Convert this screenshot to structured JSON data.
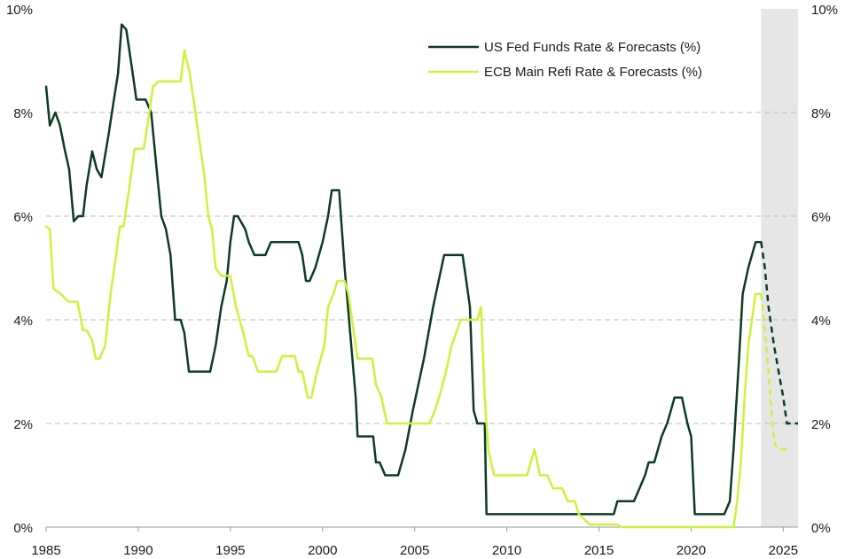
{
  "chart_data": {
    "type": "line",
    "title": "",
    "xlabel": "",
    "ylabel": "",
    "xlim": [
      1985,
      2025.8
    ],
    "ylim": [
      0,
      10
    ],
    "x_ticks": [
      1985,
      1990,
      1995,
      2000,
      2005,
      2010,
      2015,
      2020,
      2025
    ],
    "x_tick_labels": [
      "1985",
      "1990",
      "1995",
      "2000",
      "2005",
      "2010",
      "2015",
      "2020",
      "2025"
    ],
    "y_ticks": [
      0,
      2,
      4,
      6,
      8,
      10
    ],
    "y_tick_labels": [
      "0%",
      "2%",
      "4%",
      "6%",
      "8%",
      "10%"
    ],
    "gridlines": {
      "horizontal": true,
      "style": "dashed",
      "values": [
        2,
        4,
        6,
        8
      ]
    },
    "forecast_region": {
      "start": 2023.8,
      "end": 2025.8
    },
    "legend_position": "top-right",
    "series": [
      {
        "name": "US Fed Funds Rate & Forecasts (%)",
        "color": "#0d3b22",
        "actual": [
          [
            1985.0,
            8.5
          ],
          [
            1985.2,
            7.75
          ],
          [
            1985.5,
            8.0
          ],
          [
            1985.75,
            7.75
          ],
          [
            1986.0,
            7.3
          ],
          [
            1986.25,
            6.9
          ],
          [
            1986.5,
            5.9
          ],
          [
            1986.75,
            6.0
          ],
          [
            1987.0,
            6.0
          ],
          [
            1987.2,
            6.6
          ],
          [
            1987.5,
            7.25
          ],
          [
            1987.75,
            6.9
          ],
          [
            1988.0,
            6.75
          ],
          [
            1988.4,
            7.6
          ],
          [
            1988.7,
            8.3
          ],
          [
            1988.9,
            8.75
          ],
          [
            1989.1,
            9.7
          ],
          [
            1989.35,
            9.6
          ],
          [
            1989.7,
            8.75
          ],
          [
            1989.9,
            8.25
          ],
          [
            1990.4,
            8.25
          ],
          [
            1990.7,
            8.0
          ],
          [
            1991.0,
            6.9
          ],
          [
            1991.25,
            6.0
          ],
          [
            1991.5,
            5.75
          ],
          [
            1991.75,
            5.25
          ],
          [
            1992.0,
            4.0
          ],
          [
            1992.3,
            4.0
          ],
          [
            1992.5,
            3.75
          ],
          [
            1992.75,
            3.0
          ],
          [
            1993.9,
            3.0
          ],
          [
            1994.2,
            3.5
          ],
          [
            1994.5,
            4.25
          ],
          [
            1994.8,
            4.75
          ],
          [
            1995.0,
            5.5
          ],
          [
            1995.2,
            6.0
          ],
          [
            1995.4,
            6.0
          ],
          [
            1995.8,
            5.75
          ],
          [
            1996.0,
            5.5
          ],
          [
            1996.3,
            5.25
          ],
          [
            1996.9,
            5.25
          ],
          [
            1997.2,
            5.5
          ],
          [
            1998.7,
            5.5
          ],
          [
            1998.9,
            5.25
          ],
          [
            1999.1,
            4.75
          ],
          [
            1999.3,
            4.75
          ],
          [
            1999.6,
            5.0
          ],
          [
            2000.0,
            5.5
          ],
          [
            2000.3,
            6.0
          ],
          [
            2000.5,
            6.5
          ],
          [
            2000.9,
            6.5
          ],
          [
            2001.0,
            6.0
          ],
          [
            2001.2,
            5.0
          ],
          [
            2001.5,
            3.75
          ],
          [
            2001.8,
            2.5
          ],
          [
            2001.9,
            1.75
          ],
          [
            2002.75,
            1.75
          ],
          [
            2002.9,
            1.25
          ],
          [
            2003.1,
            1.25
          ],
          [
            2003.4,
            1.0
          ],
          [
            2004.1,
            1.0
          ],
          [
            2004.5,
            1.5
          ],
          [
            2004.9,
            2.25
          ],
          [
            2005.5,
            3.25
          ],
          [
            2006.0,
            4.25
          ],
          [
            2006.6,
            5.25
          ],
          [
            2007.6,
            5.25
          ],
          [
            2007.8,
            4.75
          ],
          [
            2008.0,
            4.25
          ],
          [
            2008.2,
            2.25
          ],
          [
            2008.4,
            2.0
          ],
          [
            2008.8,
            2.0
          ],
          [
            2008.9,
            0.25
          ],
          [
            2015.8,
            0.25
          ],
          [
            2016.0,
            0.5
          ],
          [
            2016.9,
            0.5
          ],
          [
            2017.2,
            0.75
          ],
          [
            2017.5,
            1.0
          ],
          [
            2017.7,
            1.25
          ],
          [
            2018.0,
            1.25
          ],
          [
            2018.4,
            1.75
          ],
          [
            2018.7,
            2.0
          ],
          [
            2018.9,
            2.25
          ],
          [
            2019.1,
            2.5
          ],
          [
            2019.5,
            2.5
          ],
          [
            2019.8,
            2.0
          ],
          [
            2020.0,
            1.75
          ],
          [
            2020.2,
            0.25
          ],
          [
            2021.8,
            0.25
          ],
          [
            2022.1,
            0.5
          ],
          [
            2022.3,
            1.5
          ],
          [
            2022.6,
            3.25
          ],
          [
            2022.8,
            4.5
          ],
          [
            2023.1,
            5.0
          ],
          [
            2023.5,
            5.5
          ],
          [
            2023.8,
            5.5
          ]
        ],
        "forecast": [
          [
            2023.8,
            5.5
          ],
          [
            2024.0,
            5.0
          ],
          [
            2024.2,
            4.25
          ],
          [
            2024.5,
            3.5
          ],
          [
            2024.8,
            2.9
          ],
          [
            2025.0,
            2.5
          ],
          [
            2025.2,
            2.0
          ],
          [
            2025.8,
            2.0
          ]
        ]
      },
      {
        "name": "ECB Main Refi Rate & Forecasts (%)",
        "color": "#cdf23b",
        "actual": [
          [
            1985.0,
            5.8
          ],
          [
            1985.2,
            5.75
          ],
          [
            1985.4,
            4.6
          ],
          [
            1985.8,
            4.5
          ],
          [
            1986.2,
            4.35
          ],
          [
            1986.7,
            4.35
          ],
          [
            1987.0,
            3.8
          ],
          [
            1987.2,
            3.8
          ],
          [
            1987.5,
            3.6
          ],
          [
            1987.7,
            3.25
          ],
          [
            1987.9,
            3.25
          ],
          [
            1988.2,
            3.5
          ],
          [
            1988.5,
            4.5
          ],
          [
            1988.8,
            5.25
          ],
          [
            1989.0,
            5.8
          ],
          [
            1989.2,
            5.8
          ],
          [
            1989.5,
            6.5
          ],
          [
            1989.8,
            7.3
          ],
          [
            1990.3,
            7.3
          ],
          [
            1990.6,
            8.0
          ],
          [
            1990.8,
            8.5
          ],
          [
            1991.1,
            8.6
          ],
          [
            1992.3,
            8.6
          ],
          [
            1992.5,
            9.2
          ],
          [
            1992.8,
            8.75
          ],
          [
            1993.0,
            8.25
          ],
          [
            1993.3,
            7.5
          ],
          [
            1993.6,
            6.75
          ],
          [
            1993.8,
            6.0
          ],
          [
            1994.0,
            5.75
          ],
          [
            1994.2,
            5.0
          ],
          [
            1994.5,
            4.85
          ],
          [
            1995.0,
            4.85
          ],
          [
            1995.3,
            4.25
          ],
          [
            1995.7,
            3.75
          ],
          [
            1996.0,
            3.3
          ],
          [
            1996.2,
            3.3
          ],
          [
            1996.5,
            3.0
          ],
          [
            1997.5,
            3.0
          ],
          [
            1997.8,
            3.3
          ],
          [
            1998.5,
            3.3
          ],
          [
            1998.7,
            3.0
          ],
          [
            1998.9,
            3.0
          ],
          [
            1999.2,
            2.5
          ],
          [
            1999.4,
            2.5
          ],
          [
            1999.7,
            3.0
          ],
          [
            2000.1,
            3.5
          ],
          [
            2000.3,
            4.25
          ],
          [
            2000.6,
            4.5
          ],
          [
            2000.8,
            4.75
          ],
          [
            2001.2,
            4.75
          ],
          [
            2001.4,
            4.5
          ],
          [
            2001.7,
            3.75
          ],
          [
            2001.9,
            3.25
          ],
          [
            2002.7,
            3.25
          ],
          [
            2002.9,
            2.75
          ],
          [
            2003.2,
            2.5
          ],
          [
            2003.5,
            2.0
          ],
          [
            2005.8,
            2.0
          ],
          [
            2006.1,
            2.25
          ],
          [
            2006.4,
            2.6
          ],
          [
            2006.7,
            3.0
          ],
          [
            2007.0,
            3.5
          ],
          [
            2007.5,
            4.0
          ],
          [
            2008.4,
            4.0
          ],
          [
            2008.6,
            4.25
          ],
          [
            2008.8,
            2.5
          ],
          [
            2009.0,
            1.5
          ],
          [
            2009.3,
            1.0
          ],
          [
            2011.1,
            1.0
          ],
          [
            2011.3,
            1.25
          ],
          [
            2011.5,
            1.5
          ],
          [
            2011.8,
            1.0
          ],
          [
            2012.2,
            1.0
          ],
          [
            2012.5,
            0.75
          ],
          [
            2013.0,
            0.75
          ],
          [
            2013.3,
            0.5
          ],
          [
            2013.7,
            0.5
          ],
          [
            2013.9,
            0.25
          ],
          [
            2014.5,
            0.05
          ],
          [
            2016.0,
            0.05
          ],
          [
            2016.2,
            0.0
          ],
          [
            2022.3,
            0.0
          ],
          [
            2022.5,
            0.5
          ],
          [
            2022.7,
            1.25
          ],
          [
            2022.9,
            2.5
          ],
          [
            2023.1,
            3.5
          ],
          [
            2023.5,
            4.5
          ],
          [
            2023.8,
            4.5
          ]
        ],
        "forecast": [
          [
            2023.8,
            4.5
          ],
          [
            2023.95,
            4.0
          ],
          [
            2024.2,
            3.0
          ],
          [
            2024.4,
            2.0
          ],
          [
            2024.55,
            1.6
          ],
          [
            2024.7,
            1.5
          ],
          [
            2025.3,
            1.5
          ]
        ]
      }
    ]
  }
}
